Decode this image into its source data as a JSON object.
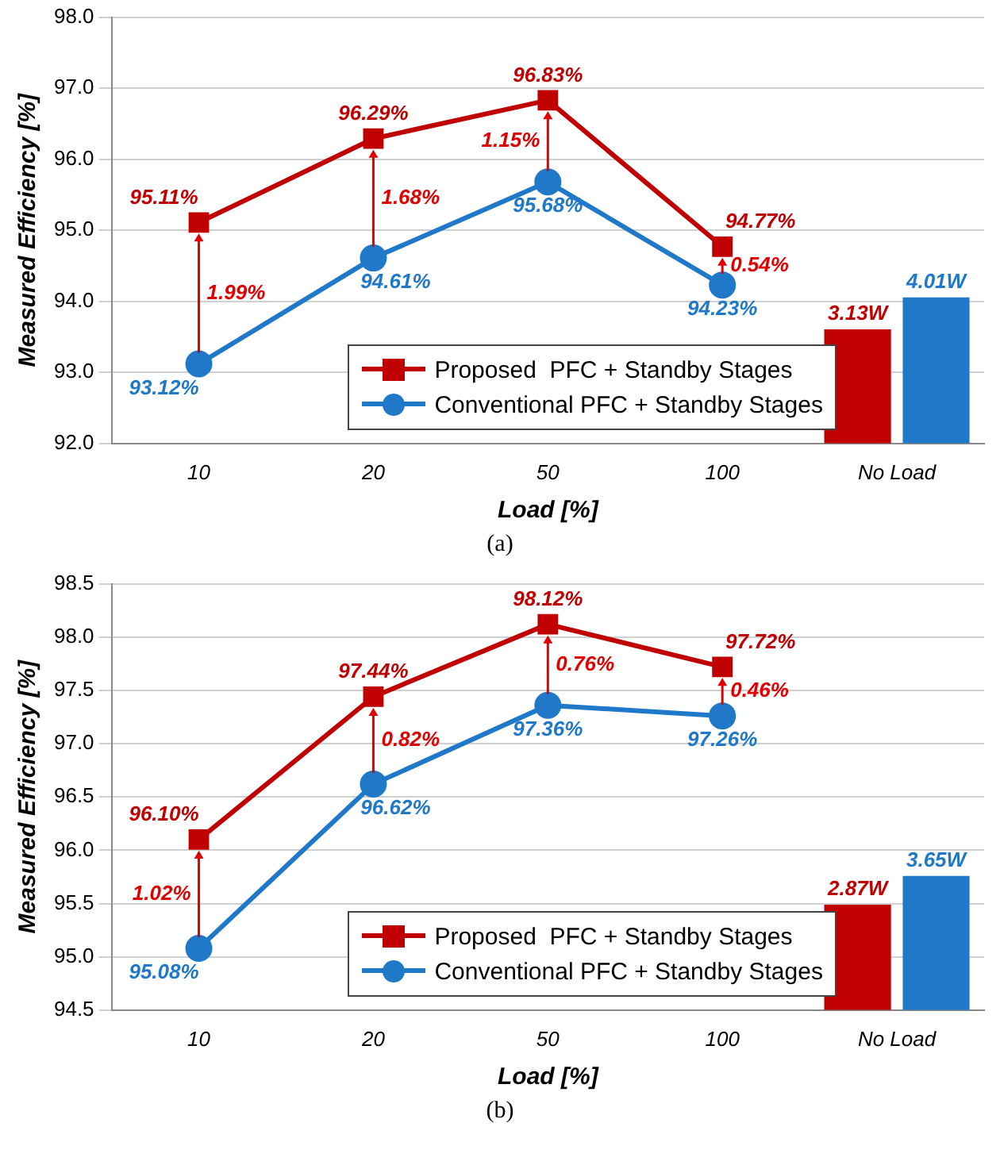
{
  "chart_data": [
    {
      "type": "line",
      "xlabel": "Load [%]",
      "ylabel": "Measured Efficiency [%]",
      "categories": [
        "10",
        "20",
        "50",
        "100",
        "No Load"
      ],
      "series": [
        {
          "name": "Proposed  PFC + Standby Stages",
          "color": "#c00000",
          "marker": "square",
          "values": [
            95.11,
            96.29,
            96.83,
            94.77,
            null
          ],
          "value_labels": [
            "95.11%",
            "96.29%",
            "96.83%",
            "94.77%",
            null
          ]
        },
        {
          "name": "Conventional PFC + Standby Stages",
          "color": "#1f78c8",
          "marker": "circle",
          "values": [
            93.12,
            94.61,
            95.68,
            94.23,
            null
          ],
          "value_labels": [
            "93.12%",
            "94.61%",
            "95.68%",
            "94.23%",
            null
          ]
        },
        {
          "type": "bar",
          "axis": "y2",
          "color": "#c00000",
          "values": [
            null,
            null,
            null,
            null,
            3.13
          ],
          "value_labels": [
            null,
            null,
            null,
            null,
            "3.13W"
          ]
        },
        {
          "type": "bar",
          "axis": "y2",
          "color": "#1f78c8",
          "values": [
            null,
            null,
            null,
            null,
            4.01
          ],
          "value_labels": [
            null,
            null,
            null,
            null,
            "4.01W"
          ]
        }
      ],
      "ylim": [
        92,
        98
      ],
      "yticks": [
        {
          "value": 92,
          "label": "92.0"
        },
        {
          "value": 93,
          "label": "93.0"
        },
        {
          "value": 94,
          "label": "94.0"
        },
        {
          "value": 95,
          "label": "95.0"
        },
        {
          "value": 96,
          "label": "96.0"
        },
        {
          "value": 97,
          "label": "97.0"
        },
        {
          "value": 98,
          "label": "98.0"
        }
      ],
      "y2lim": [
        0,
        11.7
      ],
      "grid": "y",
      "legend": "bottom",
      "annotations": [
        "1.99%",
        "1.68%",
        "1.15%",
        "0.54%",
        "(a)"
      ]
    },
    {
      "type": "line",
      "xlabel": "Load [%]",
      "ylabel": "Measured Efficiency [%]",
      "categories": [
        "10",
        "20",
        "50",
        "100",
        "No Load"
      ],
      "series": [
        {
          "name": "Proposed  PFC + Standby Stages",
          "color": "#c00000",
          "marker": "square",
          "values": [
            96.1,
            97.44,
            98.12,
            97.72,
            null
          ],
          "value_labels": [
            "96.10%",
            "97.44%",
            "98.12%",
            "97.72%",
            null
          ]
        },
        {
          "name": "Conventional PFC + Standby Stages",
          "color": "#1f78c8",
          "marker": "circle",
          "values": [
            95.08,
            96.62,
            97.36,
            97.26,
            null
          ],
          "value_labels": [
            "95.08%",
            "96.62%",
            "97.36%",
            "97.26%",
            null
          ]
        },
        {
          "type": "bar",
          "axis": "y2",
          "color": "#c00000",
          "values": [
            null,
            null,
            null,
            null,
            2.87
          ],
          "value_labels": [
            null,
            null,
            null,
            null,
            "2.87W"
          ]
        },
        {
          "type": "bar",
          "axis": "y2",
          "color": "#1f78c8",
          "values": [
            null,
            null,
            null,
            null,
            3.65
          ],
          "value_labels": [
            null,
            null,
            null,
            null,
            "3.65W"
          ]
        }
      ],
      "ylim": [
        94.5,
        98.5
      ],
      "yticks": [
        {
          "value": 94.5,
          "label": "94.5"
        },
        {
          "value": 95,
          "label": "95.0"
        },
        {
          "value": 95.5,
          "label": "95.5"
        },
        {
          "value": 96,
          "label": "96.0"
        },
        {
          "value": 96.5,
          "label": "96.5"
        },
        {
          "value": 97,
          "label": "97.0"
        },
        {
          "value": 97.5,
          "label": "97.5"
        },
        {
          "value": 98,
          "label": "98.0"
        },
        {
          "value": 98.5,
          "label": "98.5"
        }
      ],
      "y2lim": [
        0,
        11.6
      ],
      "grid": "y",
      "legend": "bottom",
      "annotations": [
        "1.02%",
        "0.82%",
        "0.76%",
        "0.46%",
        "(b)"
      ]
    }
  ]
}
